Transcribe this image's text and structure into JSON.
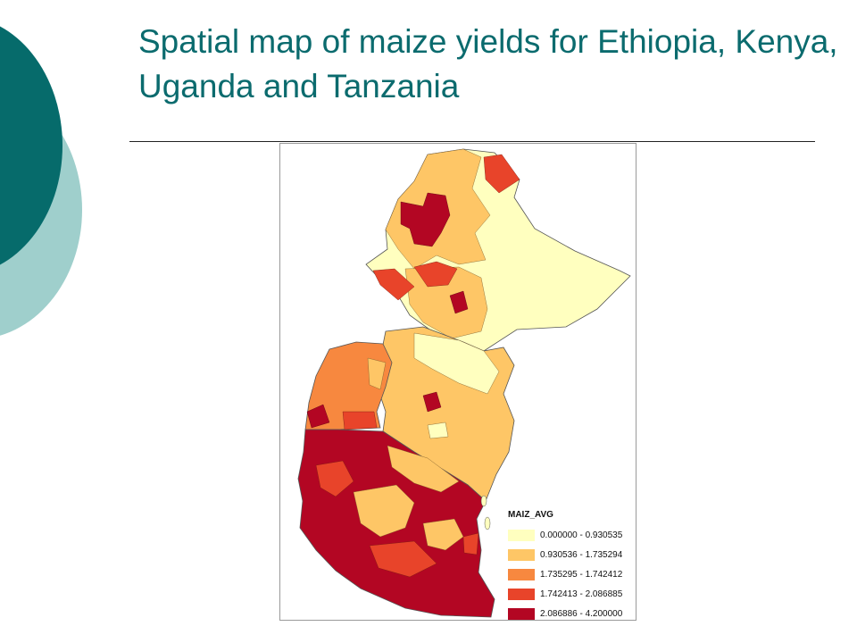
{
  "slide": {
    "title": "Spatial map of maize yields for Ethiopia, Kenya, Uganda and Tanzania"
  },
  "map": {
    "layer_name": "MAIZ_AVG",
    "legend": [
      {
        "label": "0.000000 - 0.930535",
        "color": "#ffffbf"
      },
      {
        "label": "0.930536 - 1.735294",
        "color": "#fec666"
      },
      {
        "label": "1.735295 - 1.742412",
        "color": "#f7883f"
      },
      {
        "label": "1.742413 - 2.086885",
        "color": "#e8442a"
      },
      {
        "label": "2.086886 - 4.200000",
        "color": "#b30623"
      }
    ]
  }
}
